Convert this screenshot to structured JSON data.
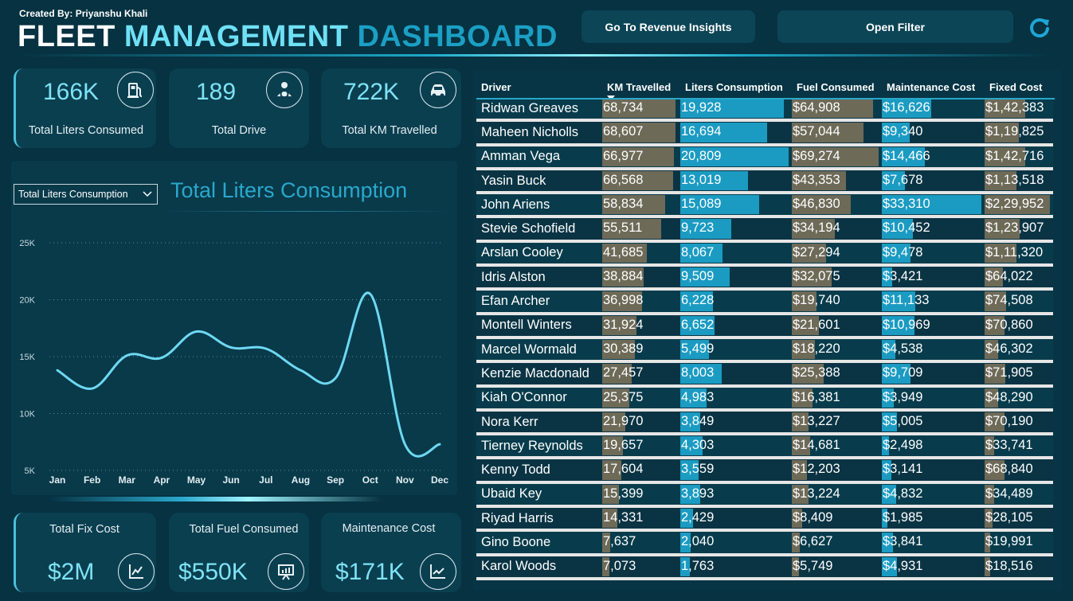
{
  "header": {
    "author": "Created By: Priyanshu Khali",
    "title_w1": "FLEET",
    "title_w2": "MANAGEMENT",
    "title_w3": "DASHBOARD",
    "btn_revenue": "Go To Revenue Insights",
    "btn_filter": "Open Filter",
    "refresh_icon": "refresh-icon"
  },
  "kpis_top": [
    {
      "value": "166K",
      "label": "Total Liters Consumed",
      "icon": "fuel-pump-icon"
    },
    {
      "value": "189",
      "label": "Total Drive",
      "icon": "driver-icon"
    },
    {
      "value": "722K",
      "label": "Total KM Travelled",
      "icon": "car-icon"
    }
  ],
  "kpis_bottom": [
    {
      "value": "$2M",
      "label": "Total Fix Cost",
      "icon": "line-chart-icon"
    },
    {
      "value": "$550K",
      "label": "Total Fuel Consumed",
      "icon": "presentation-icon"
    },
    {
      "value": "$171K",
      "label": "Maintenance Cost",
      "icon": "trend-chart-icon"
    }
  ],
  "chart_controls": {
    "selected_metric": "Total Liters Consumption",
    "title": "Total Liters Consumption"
  },
  "chart_data": {
    "type": "line",
    "title": "Total Liters Consumption",
    "x": [
      "Jan",
      "Feb",
      "Mar",
      "Apr",
      "May",
      "Jun",
      "Jul",
      "Aug",
      "Sep",
      "Oct",
      "Nov",
      "Dec"
    ],
    "series": [
      {
        "values": [
          13800,
          12200,
          15100,
          14900,
          17200,
          15800,
          15700,
          13800,
          13100,
          20500,
          7300,
          7300
        ]
      }
    ],
    "yticks": [
      "5K",
      "10K",
      "15K",
      "20K",
      "25K"
    ],
    "ylim": [
      5000,
      25000
    ],
    "grid": true,
    "color": "#6ed8f2"
  },
  "table": {
    "headers": [
      "Driver",
      "KM Travelled",
      "Liters Consumption",
      "Fuel Consumed",
      "Maintenance Cost",
      "Fixed Cost"
    ],
    "max": {
      "km": 68734,
      "liters": 20809,
      "fuel": 69274,
      "maint": 33310,
      "fixed": 229952
    },
    "rows": [
      {
        "driver": "Ridwan Greaves",
        "km": "68,734",
        "liters": "19,928",
        "fuel": "$64,908",
        "maint": "$16,626",
        "fixed": "$1,42,383",
        "km_n": 68734,
        "liters_n": 19928,
        "fuel_n": 64908,
        "maint_n": 16626,
        "fixed_n": 142383
      },
      {
        "driver": "Maheen Nicholls",
        "km": "68,607",
        "liters": "16,694",
        "fuel": "$57,044",
        "maint": "$9,340",
        "fixed": "$1,19,825",
        "km_n": 68607,
        "liters_n": 16694,
        "fuel_n": 57044,
        "maint_n": 9340,
        "fixed_n": 119825
      },
      {
        "driver": "Amman Vega",
        "km": "66,977",
        "liters": "20,809",
        "fuel": "$69,274",
        "maint": "$14,466",
        "fixed": "$1,42,716",
        "km_n": 66977,
        "liters_n": 20809,
        "fuel_n": 69274,
        "maint_n": 14466,
        "fixed_n": 142716
      },
      {
        "driver": "Yasin Buck",
        "km": "66,568",
        "liters": "13,019",
        "fuel": "$43,353",
        "maint": "$7,678",
        "fixed": "$1,13,518",
        "km_n": 66568,
        "liters_n": 13019,
        "fuel_n": 43353,
        "maint_n": 7678,
        "fixed_n": 113518
      },
      {
        "driver": "John Ariens",
        "km": "58,834",
        "liters": "15,089",
        "fuel": "$46,830",
        "maint": "$33,310",
        "fixed": "$2,29,952",
        "km_n": 58834,
        "liters_n": 15089,
        "fuel_n": 46830,
        "maint_n": 33310,
        "fixed_n": 229952
      },
      {
        "driver": "Stevie Schofield",
        "km": "55,511",
        "liters": "9,723",
        "fuel": "$34,194",
        "maint": "$10,452",
        "fixed": "$1,23,907",
        "km_n": 55511,
        "liters_n": 9723,
        "fuel_n": 34194,
        "maint_n": 10452,
        "fixed_n": 123907
      },
      {
        "driver": "Arslan Cooley",
        "km": "41,685",
        "liters": "8,067",
        "fuel": "$27,294",
        "maint": "$9,478",
        "fixed": "$1,11,320",
        "km_n": 41685,
        "liters_n": 8067,
        "fuel_n": 27294,
        "maint_n": 9478,
        "fixed_n": 111320
      },
      {
        "driver": "Idris Alston",
        "km": "38,884",
        "liters": "9,509",
        "fuel": "$32,075",
        "maint": "$3,421",
        "fixed": "$64,022",
        "km_n": 38884,
        "liters_n": 9509,
        "fuel_n": 32075,
        "maint_n": 3421,
        "fixed_n": 64022
      },
      {
        "driver": "Efan Archer",
        "km": "36,998",
        "liters": "6,228",
        "fuel": "$19,740",
        "maint": "$11,133",
        "fixed": "$74,508",
        "km_n": 36998,
        "liters_n": 6228,
        "fuel_n": 19740,
        "maint_n": 11133,
        "fixed_n": 74508
      },
      {
        "driver": "Montell Winters",
        "km": "31,924",
        "liters": "6,652",
        "fuel": "$21,601",
        "maint": "$10,969",
        "fixed": "$70,860",
        "km_n": 31924,
        "liters_n": 6652,
        "fuel_n": 21601,
        "maint_n": 10969,
        "fixed_n": 70860
      },
      {
        "driver": "Marcel Wormald",
        "km": "30,389",
        "liters": "5,499",
        "fuel": "$18,220",
        "maint": "$4,538",
        "fixed": "$46,302",
        "km_n": 30389,
        "liters_n": 5499,
        "fuel_n": 18220,
        "maint_n": 4538,
        "fixed_n": 46302
      },
      {
        "driver": "Kenzie Macdonald",
        "km": "27,457",
        "liters": "8,003",
        "fuel": "$25,388",
        "maint": "$9,709",
        "fixed": "$71,905",
        "km_n": 27457,
        "liters_n": 8003,
        "fuel_n": 25388,
        "maint_n": 9709,
        "fixed_n": 71905
      },
      {
        "driver": "Kiah O'Connor",
        "km": "25,375",
        "liters": "4,983",
        "fuel": "$16,381",
        "maint": "$3,949",
        "fixed": "$48,290",
        "km_n": 25375,
        "liters_n": 4983,
        "fuel_n": 16381,
        "maint_n": 3949,
        "fixed_n": 48290
      },
      {
        "driver": "Nora Kerr",
        "km": "21,970",
        "liters": "3,849",
        "fuel": "$13,227",
        "maint": "$5,005",
        "fixed": "$70,190",
        "km_n": 21970,
        "liters_n": 3849,
        "fuel_n": 13227,
        "maint_n": 5005,
        "fixed_n": 70190
      },
      {
        "driver": "Tierney Reynolds",
        "km": "19,657",
        "liters": "4,303",
        "fuel": "$14,681",
        "maint": "$2,498",
        "fixed": "$33,741",
        "km_n": 19657,
        "liters_n": 4303,
        "fuel_n": 14681,
        "maint_n": 2498,
        "fixed_n": 33741
      },
      {
        "driver": "Kenny Todd",
        "km": "17,604",
        "liters": "3,559",
        "fuel": "$12,203",
        "maint": "$3,141",
        "fixed": "$68,840",
        "km_n": 17604,
        "liters_n": 3559,
        "fuel_n": 12203,
        "maint_n": 3141,
        "fixed_n": 68840
      },
      {
        "driver": "Ubaid Key",
        "km": "15,399",
        "liters": "3,893",
        "fuel": "$13,224",
        "maint": "$4,832",
        "fixed": "$34,489",
        "km_n": 15399,
        "liters_n": 3893,
        "fuel_n": 13224,
        "maint_n": 4832,
        "fixed_n": 34489
      },
      {
        "driver": "Riyad Harris",
        "km": "14,331",
        "liters": "2,429",
        "fuel": "$8,409",
        "maint": "$1,985",
        "fixed": "$28,105",
        "km_n": 14331,
        "liters_n": 2429,
        "fuel_n": 8409,
        "maint_n": 1985,
        "fixed_n": 28105
      },
      {
        "driver": "Gino Boone",
        "km": "7,637",
        "liters": "2,040",
        "fuel": "$6,627",
        "maint": "$3,841",
        "fixed": "$19,991",
        "km_n": 7637,
        "liters_n": 2040,
        "fuel_n": 6627,
        "maint_n": 3841,
        "fixed_n": 19991
      },
      {
        "driver": "Karol Woods",
        "km": "7,073",
        "liters": "1,763",
        "fuel": "$5,749",
        "maint": "$4,931",
        "fixed": "$18,516",
        "km_n": 7073,
        "liters_n": 1763,
        "fuel_n": 5749,
        "maint_n": 4931,
        "fixed_n": 18516
      }
    ]
  }
}
